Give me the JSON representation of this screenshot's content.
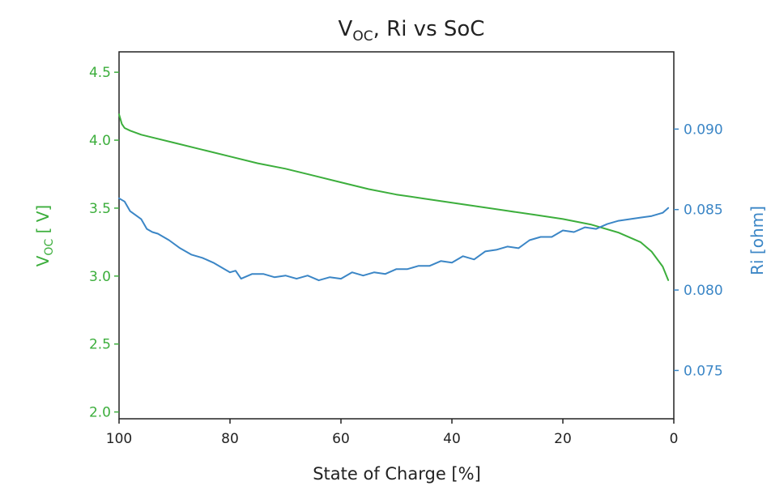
{
  "chart_data": {
    "type": "line",
    "title": {
      "main": "V",
      "sub": "OC",
      "rest": ", Ri vs SoC"
    },
    "xlabel": "State of Charge [%]",
    "ylabel_left": {
      "main": "V",
      "sub": "OC",
      "rest": " [ V]"
    },
    "ylabel_right": "Ri [ohm]",
    "xlim": [
      100,
      0
    ],
    "ylim_left": [
      1.95,
      4.65
    ],
    "ylim_right": [
      0.072,
      0.0948
    ],
    "x_ticks": [
      "100",
      "80",
      "60",
      "40",
      "20",
      "0"
    ],
    "y_left_ticks": [
      "2.0",
      "2.5",
      "3.0",
      "3.5",
      "4.0",
      "4.5"
    ],
    "y_right_ticks": [
      "0.075",
      "0.080",
      "0.085",
      "0.090"
    ],
    "grid": false,
    "colors": {
      "voc": "#3cae3c",
      "ri": "#3b86c6",
      "axis": "#222222"
    },
    "series": [
      {
        "axis": "left",
        "color": "#3cae3c",
        "points": [
          [
            100,
            4.19
          ],
          [
            99.5,
            4.12
          ],
          [
            99,
            4.09
          ],
          [
            98,
            4.07
          ],
          [
            96,
            4.04
          ],
          [
            94,
            4.02
          ],
          [
            90,
            3.98
          ],
          [
            85,
            3.93
          ],
          [
            80,
            3.88
          ],
          [
            75,
            3.83
          ],
          [
            70,
            3.79
          ],
          [
            65,
            3.74
          ],
          [
            60,
            3.69
          ],
          [
            55,
            3.64
          ],
          [
            50,
            3.6
          ],
          [
            45,
            3.57
          ],
          [
            40,
            3.54
          ],
          [
            35,
            3.51
          ],
          [
            30,
            3.48
          ],
          [
            25,
            3.45
          ],
          [
            20,
            3.42
          ],
          [
            15,
            3.38
          ],
          [
            10,
            3.32
          ],
          [
            6,
            3.25
          ],
          [
            4,
            3.18
          ],
          [
            2,
            3.07
          ],
          [
            1,
            2.97
          ]
        ]
      },
      {
        "axis": "right",
        "color": "#3b86c6",
        "points": [
          [
            100,
            0.0857
          ],
          [
            99,
            0.0855
          ],
          [
            98,
            0.0849
          ],
          [
            96,
            0.0844
          ],
          [
            95,
            0.0838
          ],
          [
            94,
            0.0836
          ],
          [
            93,
            0.0835
          ],
          [
            91,
            0.0831
          ],
          [
            89,
            0.0826
          ],
          [
            87,
            0.0822
          ],
          [
            85,
            0.082
          ],
          [
            83,
            0.0817
          ],
          [
            81,
            0.0813
          ],
          [
            80,
            0.0811
          ],
          [
            79,
            0.0812
          ],
          [
            78,
            0.0807
          ],
          [
            76,
            0.081
          ],
          [
            74,
            0.081
          ],
          [
            72,
            0.0808
          ],
          [
            70,
            0.0809
          ],
          [
            68,
            0.0807
          ],
          [
            66,
            0.0809
          ],
          [
            64,
            0.0806
          ],
          [
            62,
            0.0808
          ],
          [
            60,
            0.0807
          ],
          [
            58,
            0.0811
          ],
          [
            56,
            0.0809
          ],
          [
            54,
            0.0811
          ],
          [
            52,
            0.081
          ],
          [
            50,
            0.0813
          ],
          [
            48,
            0.0813
          ],
          [
            46,
            0.0815
          ],
          [
            44,
            0.0815
          ],
          [
            42,
            0.0818
          ],
          [
            40,
            0.0817
          ],
          [
            38,
            0.0821
          ],
          [
            36,
            0.0819
          ],
          [
            34,
            0.0824
          ],
          [
            32,
            0.0825
          ],
          [
            30,
            0.0827
          ],
          [
            28,
            0.0826
          ],
          [
            26,
            0.0831
          ],
          [
            24,
            0.0833
          ],
          [
            22,
            0.0833
          ],
          [
            20,
            0.0837
          ],
          [
            18,
            0.0836
          ],
          [
            16,
            0.0839
          ],
          [
            14,
            0.0838
          ],
          [
            12,
            0.0841
          ],
          [
            10,
            0.0843
          ],
          [
            8,
            0.0844
          ],
          [
            6,
            0.0845
          ],
          [
            4,
            0.0846
          ],
          [
            2,
            0.0848
          ],
          [
            1,
            0.0851
          ]
        ]
      }
    ]
  }
}
